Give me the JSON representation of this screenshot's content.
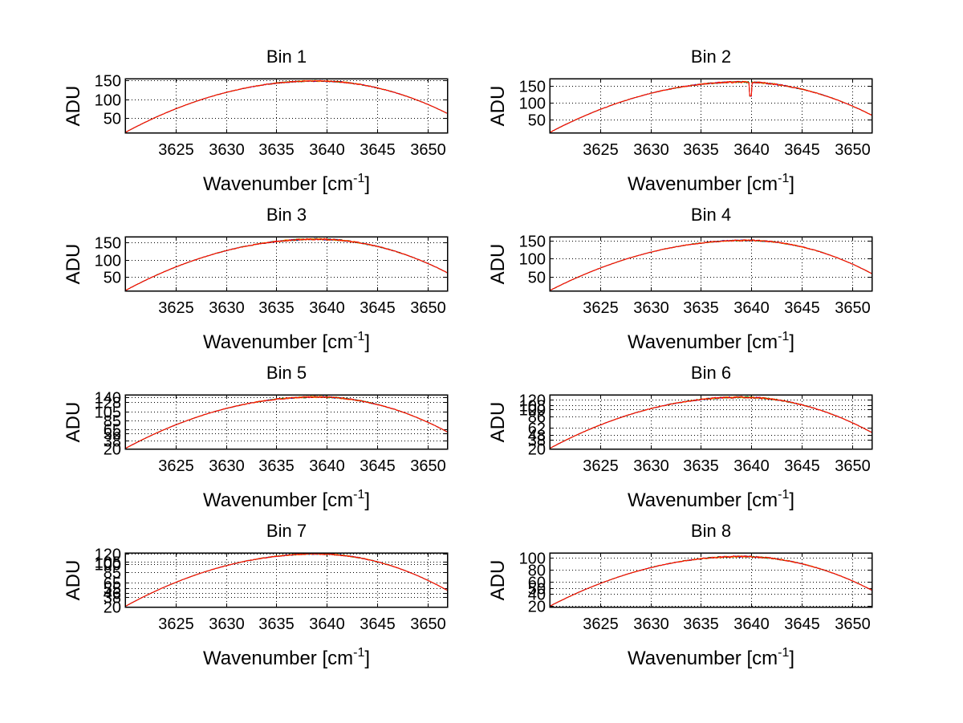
{
  "figure": {
    "background": "#ffffff",
    "foreground": "#000000",
    "line_colors": [
      "#0000ff",
      "#008000",
      "#ff8c00",
      "#ff0000"
    ],
    "grid": "dotted",
    "layout": "4 rows x 2 columns"
  },
  "chart_data": [
    {
      "type": "line",
      "title": "Bin 1",
      "xlabel": "Wavenumber [cm",
      "xlabel_sup": "-1",
      "xlabel_close": "]",
      "ylabel": "ADU",
      "xlim": [
        3620,
        3652
      ],
      "ylim": [
        10,
        155
      ],
      "xticks": [
        3625,
        3630,
        3635,
        3640,
        3645,
        3650
      ],
      "yticks": [
        50,
        100,
        150
      ],
      "shape": {
        "y_start": 12,
        "y_peak": 149,
        "x_peak": 3639.0,
        "y_end": 62,
        "noise": 3,
        "dip_x": null,
        "dip_y": null
      },
      "series_count": 4
    },
    {
      "type": "line",
      "title": "Bin 2",
      "xlabel": "Wavenumber [cm",
      "xlabel_sup": "-1",
      "xlabel_close": "]",
      "ylabel": "ADU",
      "xlim": [
        3620,
        3652
      ],
      "ylim": [
        10,
        170
      ],
      "xticks": [
        3625,
        3630,
        3635,
        3640,
        3645,
        3650
      ],
      "yticks": [
        50,
        100,
        150
      ],
      "shape": {
        "y_start": 12,
        "y_peak": 160,
        "x_peak": 3639.0,
        "y_end": 62,
        "noise": 4,
        "dip_x": 3639.9,
        "dip_y": 120
      },
      "series_count": 4
    },
    {
      "type": "line",
      "title": "Bin 3",
      "xlabel": "Wavenumber [cm",
      "xlabel_sup": "-1",
      "xlabel_close": "]",
      "ylabel": "ADU",
      "xlim": [
        3620,
        3652
      ],
      "ylim": [
        10,
        165
      ],
      "xticks": [
        3625,
        3630,
        3635,
        3640,
        3645,
        3650
      ],
      "yticks": [
        50,
        100,
        150
      ],
      "shape": {
        "y_start": 12,
        "y_peak": 158,
        "x_peak": 3639.0,
        "y_end": 62,
        "noise": 4,
        "dip_x": null,
        "dip_y": null
      },
      "series_count": 4
    },
    {
      "type": "line",
      "title": "Bin 4",
      "xlabel": "Wavenumber [cm",
      "xlabel_sup": "-1",
      "xlabel_close": "]",
      "ylabel": "ADU",
      "xlim": [
        3620,
        3652
      ],
      "ylim": [
        10,
        160
      ],
      "xticks": [
        3625,
        3630,
        3635,
        3640,
        3645,
        3650
      ],
      "yticks": [
        50,
        100,
        150
      ],
      "shape": {
        "y_start": 12,
        "y_peak": 150,
        "x_peak": 3639.5,
        "y_end": 58,
        "noise": 3,
        "dip_x": null,
        "dip_y": null
      },
      "series_count": 4
    },
    {
      "type": "line",
      "title": "Bin 5",
      "xlabel": "Wavenumber [cm",
      "xlabel_sup": "-1",
      "xlabel_close": "]",
      "ylabel": "ADU",
      "xlim": [
        3620,
        3652
      ],
      "ylim": [
        18,
        145
      ],
      "xticks": [
        3625,
        3630,
        3635,
        3640,
        3645,
        3650
      ],
      "yticks": [
        20,
        38,
        56,
        65,
        85,
        105,
        128,
        140
      ],
      "shape": {
        "y_start": 20,
        "y_peak": 140,
        "x_peak": 3639.0,
        "y_end": 58,
        "noise": 3,
        "dip_x": null,
        "dip_y": null
      },
      "series_count": 4
    },
    {
      "type": "line",
      "title": "Bin 6",
      "xlabel": "Wavenumber [cm",
      "xlabel_sup": "-1",
      "xlabel_close": "]",
      "ylabel": "ADU",
      "xlim": [
        3620,
        3652
      ],
      "ylim": [
        18,
        130
      ],
      "xticks": [
        3625,
        3630,
        3635,
        3640,
        3645,
        3650
      ],
      "yticks": [
        20,
        38,
        48,
        62,
        86,
        100,
        108,
        120
      ],
      "shape": {
        "y_start": 20,
        "y_peak": 125,
        "x_peak": 3639.0,
        "y_end": 52,
        "noise": 3,
        "dip_x": null,
        "dip_y": null
      },
      "series_count": 4
    },
    {
      "type": "line",
      "title": "Bin 7",
      "xlabel": "Wavenumber [cm",
      "xlabel_sup": "-1",
      "xlabel_close": "]",
      "ylabel": "ADU",
      "xlim": [
        3620,
        3652
      ],
      "ylim": [
        18,
        122
      ],
      "xticks": [
        3625,
        3630,
        3635,
        3640,
        3645,
        3650
      ],
      "yticks": [
        20,
        38,
        46,
        55,
        65,
        85,
        100,
        105,
        120
      ],
      "shape": {
        "y_start": 20,
        "y_peak": 120,
        "x_peak": 3639.0,
        "y_end": 50,
        "noise": 2,
        "dip_x": null,
        "dip_y": null
      },
      "series_count": 4
    },
    {
      "type": "line",
      "title": "Bin 8",
      "xlabel": "Wavenumber [cm",
      "xlabel_sup": "-1",
      "xlabel_close": "]",
      "ylabel": "ADU",
      "xlim": [
        3620,
        3652
      ],
      "ylim": [
        18,
        108
      ],
      "xticks": [
        3625,
        3630,
        3635,
        3640,
        3645,
        3650
      ],
      "yticks": [
        20,
        40,
        50,
        60,
        80,
        100
      ],
      "shape": {
        "y_start": 20,
        "y_peak": 102,
        "x_peak": 3639.0,
        "y_end": 46,
        "noise": 2,
        "dip_x": null,
        "dip_y": null
      },
      "series_count": 4
    }
  ]
}
